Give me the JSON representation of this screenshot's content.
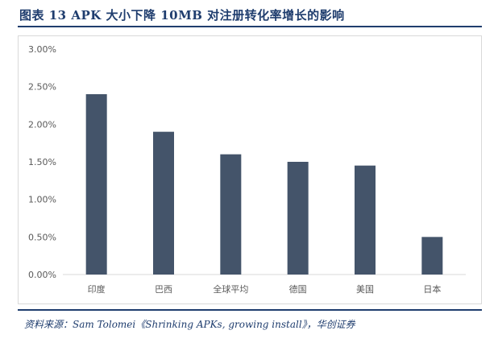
{
  "figure": {
    "title": "图表 13   APK 大小下降 10MB 对注册转化率增长的影响",
    "source": "资料来源：Sam Tolomei《Shrinking APKs, growing install》，华创证券"
  },
  "colors": {
    "bar": "#44546a",
    "title": "#1f3d6e",
    "grid": "#d9d9d9",
    "tick": "#595959"
  },
  "chart_data": {
    "type": "bar",
    "categories": [
      "印度",
      "巴西",
      "全球平均",
      "德国",
      "美国",
      "日本"
    ],
    "values": [
      0.024,
      0.019,
      0.016,
      0.015,
      0.0145,
      0.005
    ],
    "ylim": [
      0,
      0.03
    ],
    "yticks": [
      "0.00%",
      "0.50%",
      "1.00%",
      "1.50%",
      "2.00%",
      "2.50%",
      "3.00%"
    ],
    "grid": false,
    "legend": "none"
  }
}
